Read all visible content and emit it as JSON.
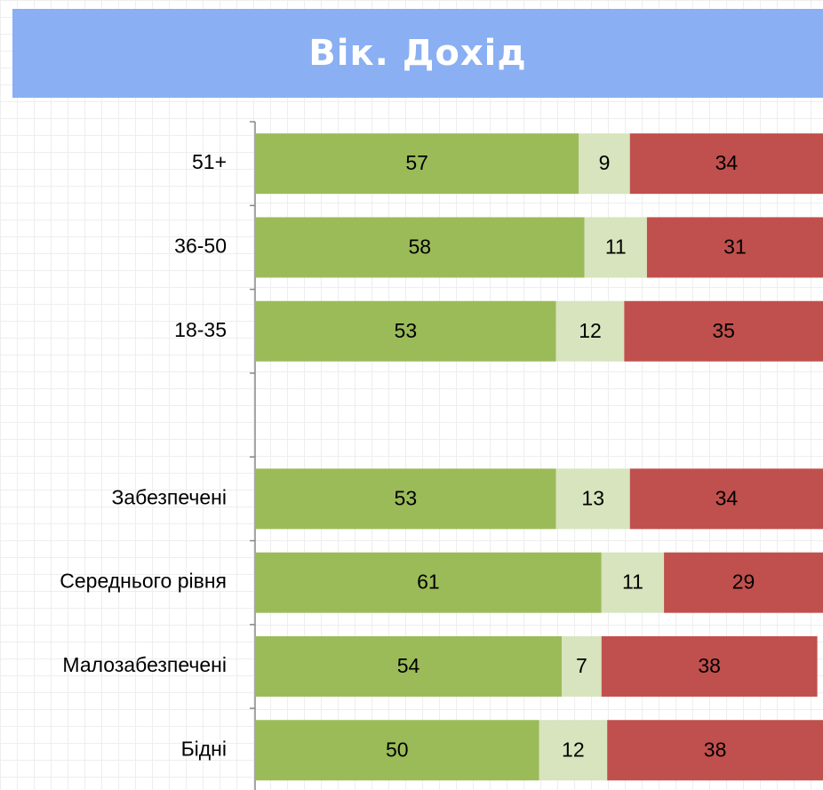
{
  "chart_data": {
    "type": "stacked-bar-horizontal",
    "title": "Вік. Дохід",
    "categories": [
      "51+",
      "36-50",
      "18-35",
      null,
      "Забезпечені",
      "Середнього рівня",
      "Малозабезпечені",
      "Бідні"
    ],
    "series": [
      {
        "color": "#9bbb59",
        "values": [
          57,
          58,
          53,
          null,
          53,
          61,
          54,
          50
        ]
      },
      {
        "color": "#d7e4bd",
        "values": [
          9,
          11,
          12,
          null,
          13,
          11,
          7,
          12
        ]
      },
      {
        "color": "#c0504d",
        "values": [
          34,
          31,
          35,
          null,
          34,
          29,
          38,
          38
        ]
      }
    ],
    "xlim": [
      0,
      100
    ]
  }
}
